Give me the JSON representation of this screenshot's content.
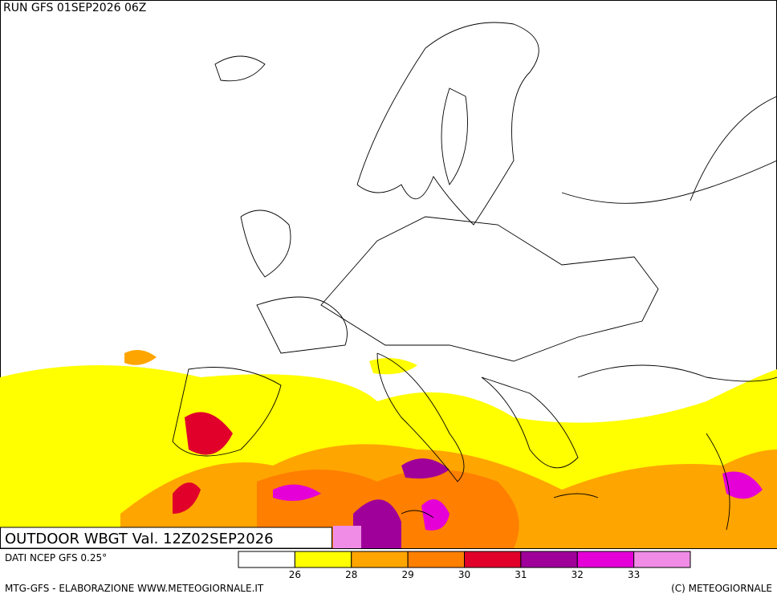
{
  "header": {
    "run": "RUN GFS 01SEP2026 06Z"
  },
  "map": {
    "title": "OUTDOOR WBGT Val. 12Z02SEP2026"
  },
  "legend": {
    "source": "DATI NCEP GFS 0.25°",
    "colors": [
      "#ffffff",
      "#ffff00",
      "#ffa500",
      "#ff7f00",
      "#e0002a",
      "#a0009a",
      "#e600d8",
      "#f08ce6"
    ],
    "ticks": [
      26,
      28,
      29,
      30,
      31,
      32,
      33
    ]
  },
  "footer": {
    "left": "MTG-GFS - ELABORAZIONE WWW.METEOGIORNALE.IT",
    "right": "(C) METEOGIORNALE"
  }
}
